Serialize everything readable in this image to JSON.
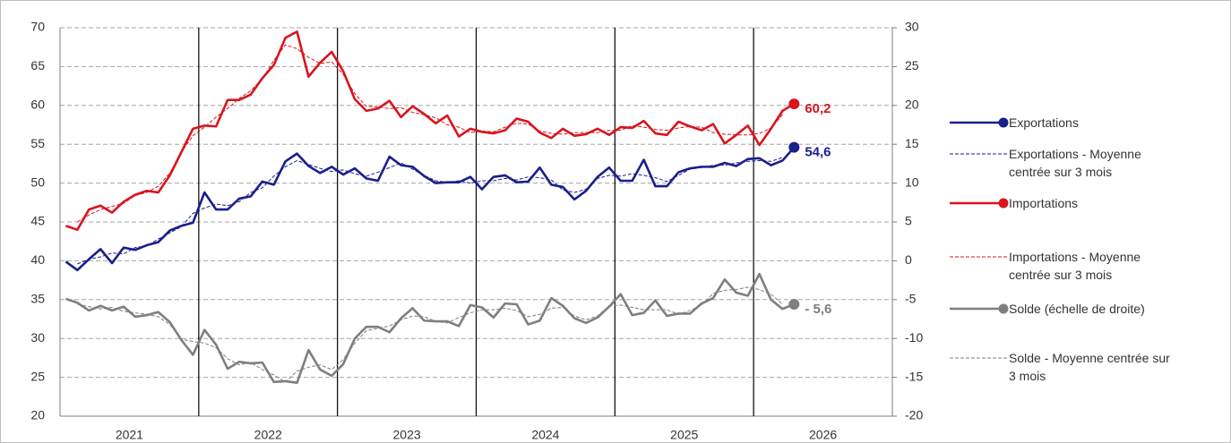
{
  "chart_data": {
    "type": "line",
    "categories": [
      "2021",
      null,
      null,
      null,
      null,
      null,
      null,
      null,
      null,
      null,
      null,
      null,
      "2022",
      null,
      null,
      null,
      null,
      null,
      null,
      null,
      null,
      null,
      null,
      null,
      "2023",
      null,
      null,
      null,
      null,
      null,
      null,
      null,
      null,
      null,
      null,
      null,
      "2024",
      null,
      null,
      null,
      null,
      null,
      null,
      null,
      null,
      null,
      null,
      null,
      "2025",
      null,
      null,
      null,
      null,
      null,
      null,
      null,
      null,
      null,
      null,
      null,
      "2026",
      null,
      null,
      null
    ],
    "ylim": [
      20,
      70
    ],
    "yticks": [
      20,
      25,
      30,
      35,
      40,
      45,
      50,
      55,
      60,
      65,
      70
    ],
    "y2lim": [
      -20,
      30
    ],
    "y2ticks": [
      -20,
      -15,
      -10,
      -5,
      0,
      5,
      10,
      15,
      20,
      25,
      30
    ],
    "grid": true,
    "legend": "right",
    "series": [
      {
        "name": "Exportations",
        "color": "#1a1f8c",
        "style": "solid",
        "marker": "circle",
        "values": [
          39.9,
          38.8,
          40.2,
          41.5,
          39.7,
          41.7,
          41.4,
          42.0,
          42.4,
          43.9,
          44.5,
          44.9,
          48.8,
          46.6,
          46.6,
          48.0,
          48.3,
          50.2,
          49.8,
          52.8,
          53.8,
          52.2,
          51.3,
          52.1,
          51.1,
          51.9,
          50.6,
          50.3,
          53.4,
          52.3,
          52.1,
          50.9,
          50.0,
          50.1,
          50.1,
          50.8,
          49.2,
          50.8,
          51.0,
          50.1,
          50.2,
          52.0,
          49.8,
          49.5,
          47.9,
          49.0,
          50.8,
          52.0,
          50.3,
          50.3,
          53.0,
          49.6,
          49.6,
          51.4,
          51.9,
          52.1,
          52.1,
          52.6,
          52.2,
          53.1,
          53.2,
          52.3,
          52.9,
          54.6
        ],
        "value_labels": [
          null,
          null,
          null,
          null,
          null,
          null,
          null,
          null,
          null,
          null,
          null,
          null,
          null,
          null,
          null,
          null,
          null,
          null,
          null,
          null,
          null,
          null,
          null,
          null,
          null,
          null,
          null,
          null,
          null,
          null,
          null,
          null,
          null,
          null,
          null,
          null,
          null,
          null,
          null,
          null,
          null,
          null,
          null,
          null,
          null,
          null,
          null,
          null,
          null,
          null,
          null,
          null,
          null,
          null,
          null,
          null,
          null,
          null,
          null,
          null,
          null,
          null,
          null,
          "54,6"
        ]
      },
      {
        "name": "Exportations - Moyenne centrée sur 3 mois",
        "color": "#1a1f8c",
        "style": "dashed",
        "values": [
          null,
          39.6,
          40.2,
          40.5,
          41.0,
          40.9,
          41.7,
          41.9,
          42.8,
          43.6,
          44.4,
          46.1,
          46.8,
          47.3,
          47.1,
          47.6,
          48.8,
          49.4,
          50.9,
          52.1,
          52.9,
          52.4,
          51.9,
          51.5,
          51.7,
          51.2,
          50.9,
          51.4,
          52.0,
          52.6,
          51.8,
          51.0,
          50.3,
          50.1,
          50.3,
          50.0,
          50.3,
          50.3,
          50.6,
          50.4,
          50.8,
          50.7,
          50.4,
          49.1,
          48.8,
          49.2,
          50.6,
          51.0,
          50.9,
          51.2,
          51.0,
          50.7,
          50.2,
          51.0,
          51.8,
          52.0,
          52.3,
          52.3,
          52.6,
          52.8,
          52.9,
          52.8,
          53.3,
          null
        ]
      },
      {
        "name": "Importations",
        "color": "#d9141e",
        "style": "solid",
        "marker": "circle",
        "values": [
          44.5,
          44.0,
          46.6,
          47.1,
          46.2,
          47.6,
          48.5,
          49.0,
          48.8,
          51.0,
          54.0,
          57.0,
          57.4,
          57.3,
          60.7,
          60.7,
          61.4,
          63.5,
          65.2,
          68.7,
          69.5,
          63.7,
          65.5,
          66.9,
          64.4,
          60.8,
          59.3,
          59.6,
          60.6,
          58.5,
          59.9,
          58.9,
          57.7,
          58.7,
          56.0,
          57.0,
          56.6,
          56.4,
          56.8,
          58.3,
          57.9,
          56.5,
          55.8,
          57.0,
          56.1,
          56.3,
          57.0,
          56.2,
          57.2,
          57.1,
          58.0,
          56.4,
          56.2,
          57.9,
          57.3,
          56.8,
          57.6,
          55.1,
          56.2,
          57.4,
          54.9,
          57.0,
          59.3,
          60.2
        ],
        "value_labels": [
          null,
          null,
          null,
          null,
          null,
          null,
          null,
          null,
          null,
          null,
          null,
          null,
          null,
          null,
          null,
          null,
          null,
          null,
          null,
          null,
          null,
          null,
          null,
          null,
          null,
          null,
          null,
          null,
          null,
          null,
          null,
          null,
          null,
          null,
          null,
          null,
          null,
          null,
          null,
          null,
          null,
          null,
          null,
          null,
          null,
          null,
          null,
          null,
          null,
          null,
          null,
          null,
          null,
          null,
          null,
          null,
          null,
          null,
          null,
          null,
          null,
          null,
          null,
          "60,2"
        ]
      },
      {
        "name": "Importations - Moyenne centrée sur 3 mois",
        "color": "#d9141e",
        "style": "dashed",
        "values": [
          null,
          45.0,
          45.9,
          46.6,
          47.0,
          47.4,
          48.4,
          48.8,
          49.6,
          51.3,
          54.0,
          56.1,
          57.2,
          58.5,
          59.6,
          60.9,
          61.9,
          63.4,
          65.8,
          67.8,
          67.3,
          66.2,
          65.4,
          65.6,
          64.0,
          61.5,
          59.9,
          59.8,
          59.6,
          59.7,
          59.1,
          58.8,
          58.4,
          57.5,
          57.2,
          56.5,
          56.7,
          56.6,
          57.2,
          57.7,
          57.6,
          56.7,
          56.4,
          56.3,
          56.5,
          56.5,
          56.5,
          56.8,
          56.8,
          57.4,
          57.2,
          56.9,
          56.8,
          57.1,
          57.3,
          57.2,
          56.5,
          56.3,
          56.2,
          56.2,
          56.4,
          57.1,
          58.8,
          null
        ]
      },
      {
        "name": "Solde (échelle de droite)",
        "color": "#7f7f7f",
        "style": "solid",
        "marker": "circle",
        "axis": "y2",
        "values": [
          -4.9,
          -5.4,
          -6.4,
          -5.8,
          -6.4,
          -5.9,
          -7.2,
          -7.0,
          -6.6,
          -7.9,
          -10.2,
          -12.1,
          -8.9,
          -10.8,
          -13.9,
          -13.0,
          -13.2,
          -13.1,
          -15.6,
          -15.5,
          -15.7,
          -11.5,
          -14.0,
          -14.8,
          -13.3,
          -10.0,
          -8.5,
          -8.5,
          -9.2,
          -7.4,
          -6.1,
          -7.7,
          -7.8,
          -7.8,
          -8.4,
          -5.7,
          -6.0,
          -7.3,
          -5.5,
          -5.6,
          -8.2,
          -7.7,
          -4.8,
          -5.8,
          -7.4,
          -8.0,
          -7.3,
          -5.9,
          -4.3,
          -7.0,
          -6.7,
          -5.1,
          -7.1,
          -6.8,
          -6.8,
          -5.5,
          -4.8,
          -2.4,
          -4.1,
          -4.5,
          -1.7,
          -5.0,
          -6.2,
          -5.6
        ],
        "value_labels": [
          null,
          null,
          null,
          null,
          null,
          null,
          null,
          null,
          null,
          null,
          null,
          null,
          null,
          null,
          null,
          null,
          null,
          null,
          null,
          null,
          null,
          null,
          null,
          null,
          null,
          null,
          null,
          null,
          null,
          null,
          null,
          null,
          null,
          null,
          null,
          null,
          null,
          null,
          null,
          null,
          null,
          null,
          null,
          null,
          null,
          null,
          null,
          null,
          null,
          null,
          null,
          null,
          null,
          null,
          null,
          null,
          null,
          null,
          null,
          null,
          null,
          null,
          null,
          "- 5,6"
        ]
      },
      {
        "name": "Solde - Moyenne centrée sur 3 mois",
        "color": "#7f7f7f",
        "style": "dashed",
        "axis": "y2",
        "values": [
          null,
          -5.6,
          -5.9,
          -6.2,
          -6.0,
          -6.5,
          -6.7,
          -6.9,
          -7.2,
          -8.2,
          -10.1,
          -10.4,
          -10.6,
          -11.2,
          -12.6,
          -13.4,
          -13.1,
          -14.0,
          -14.7,
          -15.6,
          -14.2,
          -13.7,
          -13.4,
          -14.0,
          -12.7,
          -10.6,
          -9.0,
          -8.7,
          -8.4,
          -7.6,
          -7.1,
          -7.2,
          -7.8,
          -8.0,
          -7.3,
          -6.7,
          -6.3,
          -6.3,
          -6.1,
          -6.4,
          -7.2,
          -6.9,
          -6.1,
          -6.0,
          -7.1,
          -7.6,
          -7.1,
          -5.8,
          -5.7,
          -6.0,
          -6.3,
          -6.3,
          -6.3,
          -6.9,
          -6.4,
          -5.7,
          -4.2,
          -3.8,
          -3.7,
          -3.4,
          -3.7,
          -4.3,
          -5.6,
          null
        ]
      }
    ]
  }
}
